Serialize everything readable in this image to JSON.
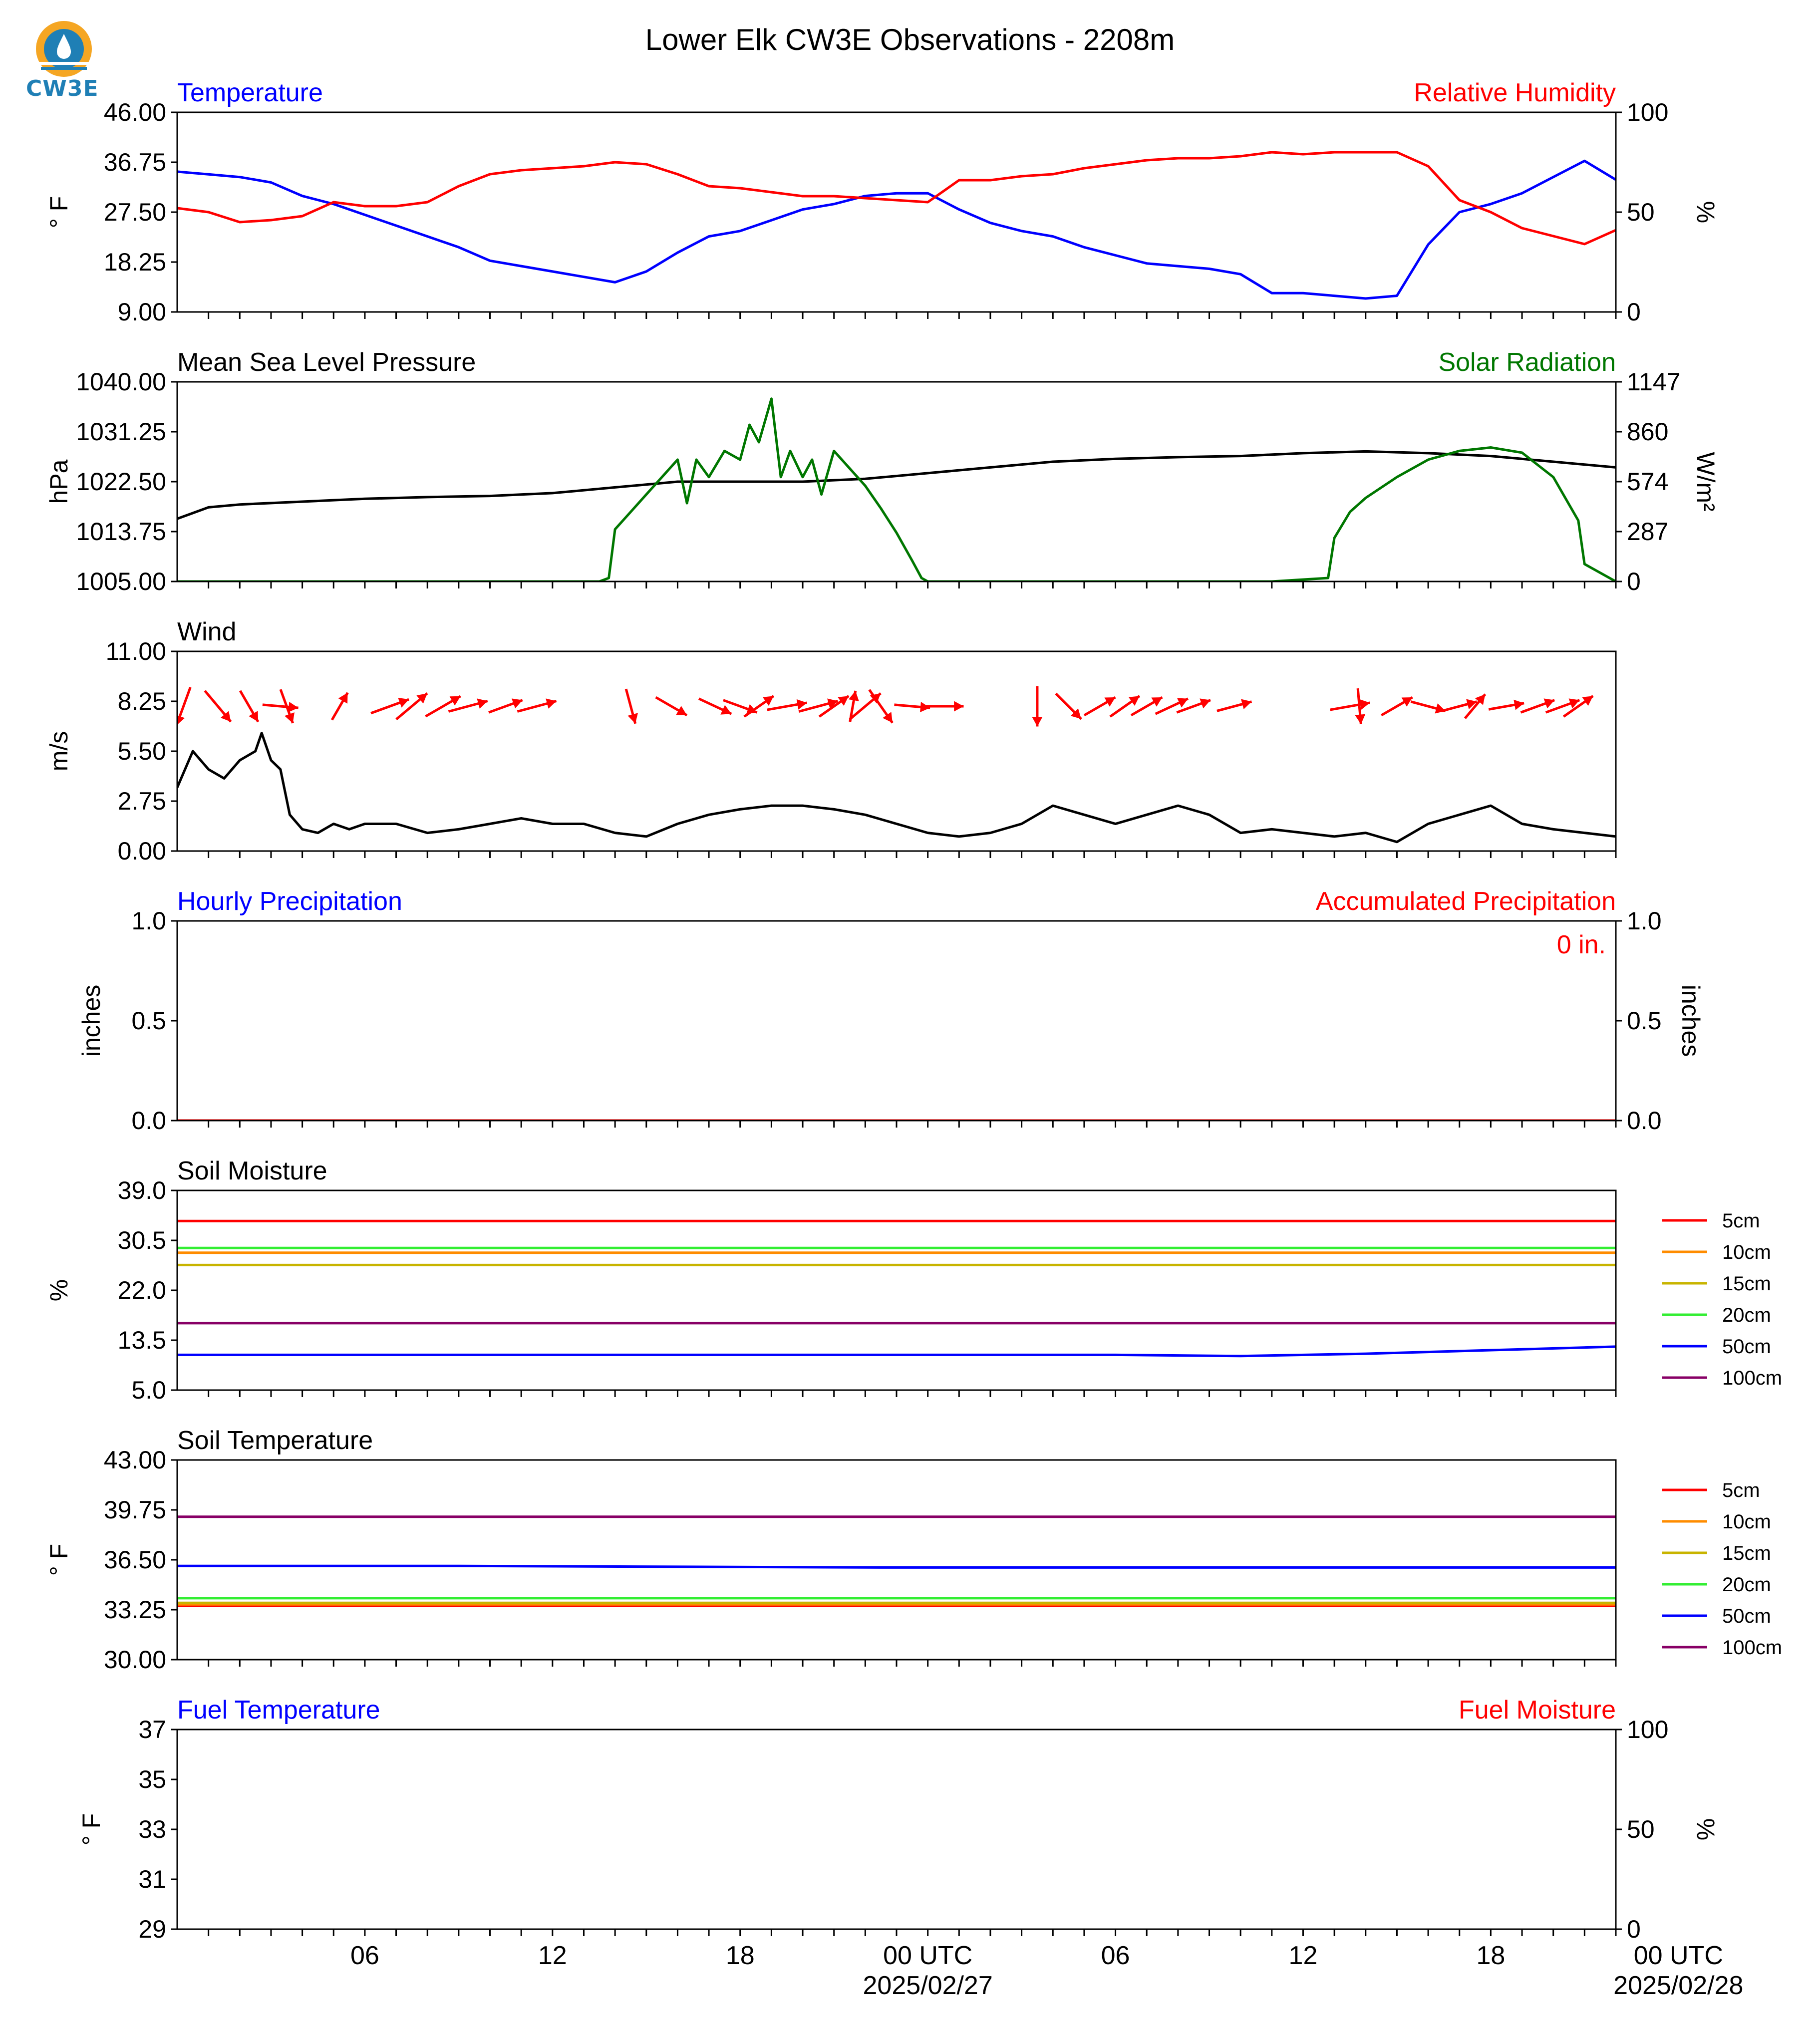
{
  "title": "Lower Elk CW3E Observations - 2208m",
  "logo": {
    "text": "CW3E",
    "icon": "cw3e-logo-icon",
    "colors": [
      "#f5a623",
      "#1f7fb5"
    ]
  },
  "time_axis": {
    "start_hour": 0,
    "end_hour": 46,
    "tick_hours": [
      6,
      12,
      18,
      24,
      30,
      36,
      42,
      48
    ],
    "tick_labels": [
      "06",
      "12",
      "18",
      "00 UTC",
      "06",
      "12",
      "18",
      "00 UTC"
    ],
    "date_labels": [
      {
        "hour": 24,
        "text": "2025/02/27"
      },
      {
        "hour": 48,
        "text": "2025/02/28"
      }
    ]
  },
  "legend_soil": [
    {
      "label": "5cm",
      "color": "#ff0000"
    },
    {
      "label": "10cm",
      "color": "#ff8c00"
    },
    {
      "label": "15cm",
      "color": "#c8b400"
    },
    {
      "label": "20cm",
      "color": "#33ee33"
    },
    {
      "label": "50cm",
      "color": "#0000ff"
    },
    {
      "label": "100cm",
      "color": "#880066"
    }
  ],
  "precip_total": "0 in.",
  "chart_data": [
    {
      "type": "line",
      "title_left": "Temperature",
      "title_left_color": "#0000ff",
      "title_right": "Relative Humidity",
      "title_right_color": "#ff0000",
      "ylabel": "° F",
      "ylabel_right": "%",
      "ylim": [
        9,
        46
      ],
      "yticks": [
        "9.00",
        "18.25",
        "27.50",
        "36.75",
        "46.00"
      ],
      "ylim_right": [
        0,
        100
      ],
      "yticks_right": [
        "0",
        "50",
        "100"
      ],
      "series": [
        {
          "name": "Temperature",
          "axis": "left",
          "color": "#0000ff",
          "x": [
            0,
            1,
            2,
            3,
            4,
            5,
            6,
            7,
            8,
            9,
            10,
            11,
            12,
            13,
            14,
            15,
            16,
            17,
            18,
            19,
            20,
            21,
            22,
            23,
            24,
            25,
            26,
            27,
            28,
            29,
            30,
            31,
            32,
            33,
            34,
            35,
            36,
            37,
            38,
            39,
            40,
            41,
            42,
            43,
            44,
            45,
            46
          ],
          "y": [
            35,
            34.5,
            34,
            33,
            30.5,
            29,
            27,
            25,
            23,
            21,
            18.5,
            17.5,
            16.5,
            15.5,
            14.5,
            16.5,
            20,
            23,
            24,
            26,
            28,
            29,
            30.5,
            31,
            31,
            28,
            25.5,
            24,
            23,
            21,
            19.5,
            18,
            17.5,
            17,
            16,
            12.5,
            12.5,
            12,
            11.5,
            12,
            21.5,
            27.5,
            29,
            31,
            34,
            37,
            33.5
          ]
        },
        {
          "name": "Relative Humidity",
          "axis": "right",
          "color": "#ff0000",
          "x": [
            0,
            1,
            2,
            3,
            4,
            5,
            6,
            7,
            8,
            9,
            10,
            11,
            12,
            13,
            14,
            15,
            16,
            17,
            18,
            19,
            20,
            21,
            22,
            23,
            24,
            25,
            26,
            27,
            28,
            29,
            30,
            31,
            32,
            33,
            34,
            35,
            36,
            37,
            38,
            39,
            40,
            41,
            42,
            43,
            44,
            45,
            46
          ],
          "y": [
            52,
            50,
            45,
            46,
            48,
            55,
            53,
            53,
            55,
            63,
            69,
            71,
            72,
            73,
            75,
            74,
            69,
            63,
            62,
            60,
            58,
            58,
            57,
            56,
            55,
            66,
            66,
            68,
            69,
            72,
            74,
            76,
            77,
            77,
            78,
            80,
            79,
            80,
            80,
            80,
            73,
            56,
            50,
            42,
            38,
            34,
            41
          ]
        }
      ]
    },
    {
      "type": "line",
      "title_left": "Mean Sea Level Pressure",
      "title_left_color": "#000000",
      "title_right": "Solar Radiation",
      "title_right_color": "#007700",
      "ylabel": "hPa",
      "ylabel_right": "W/m²",
      "ylim": [
        1005,
        1040
      ],
      "yticks": [
        "1005.00",
        "1013.75",
        "1022.50",
        "1031.25",
        "1040.00"
      ],
      "ylim_right": [
        0,
        1147
      ],
      "yticks_right": [
        "0",
        "287",
        "574",
        "860",
        "1147"
      ],
      "series": [
        {
          "name": "Mean Sea Level Pressure",
          "axis": "left",
          "color": "#000000",
          "x": [
            0,
            1,
            2,
            4,
            6,
            8,
            10,
            12,
            14,
            16,
            18,
            20,
            22,
            24,
            26,
            28,
            30,
            32,
            34,
            36,
            38,
            40,
            42,
            44,
            46
          ],
          "y": [
            1016,
            1018,
            1018.5,
            1019,
            1019.5,
            1019.8,
            1020,
            1020.5,
            1021.5,
            1022.5,
            1022.5,
            1022.5,
            1023,
            1024,
            1025,
            1026,
            1026.5,
            1026.8,
            1027,
            1027.5,
            1027.8,
            1027.5,
            1027,
            1026,
            1025
          ]
        },
        {
          "name": "Solar Radiation",
          "axis": "right",
          "color": "#007700",
          "x": [
            0,
            13.5,
            13.8,
            14,
            14.5,
            15,
            15.5,
            16,
            16.3,
            16.6,
            17,
            17.5,
            18,
            18.3,
            18.6,
            19,
            19.3,
            19.6,
            20,
            20.3,
            20.6,
            21,
            21.5,
            22,
            22.5,
            23,
            23.5,
            23.8,
            24,
            24.5,
            35,
            36.8,
            37,
            37.5,
            38,
            39,
            40,
            41,
            42,
            43,
            44,
            44.8,
            45,
            46
          ],
          "y": [
            0,
            0,
            20,
            300,
            400,
            500,
            600,
            700,
            450,
            700,
            600,
            750,
            700,
            900,
            800,
            1050,
            600,
            750,
            600,
            700,
            500,
            750,
            650,
            550,
            420,
            280,
            120,
            20,
            0,
            0,
            0,
            20,
            250,
            400,
            480,
            600,
            700,
            750,
            770,
            740,
            600,
            350,
            100,
            0
          ]
        }
      ]
    },
    {
      "type": "line",
      "title_left": "Wind",
      "title_left_color": "#000000",
      "ylabel": "m/s",
      "ylim": [
        0,
        11
      ],
      "yticks": [
        "0.00",
        "2.75",
        "5.50",
        "8.25",
        "11.00"
      ],
      "series": [
        {
          "name": "Wind",
          "axis": "left",
          "color": "#000000",
          "x": [
            0,
            0.5,
            1,
            1.5,
            2,
            2.5,
            2.7,
            3,
            3.3,
            3.6,
            4,
            4.5,
            5,
            5.5,
            6,
            7,
            8,
            9,
            10,
            11,
            12,
            13,
            14,
            15,
            16,
            17,
            18,
            19,
            20,
            21,
            22,
            23,
            24,
            25,
            26,
            27,
            28,
            29,
            30,
            31,
            32,
            33,
            34,
            35,
            36,
            37,
            38,
            39,
            40,
            41,
            42,
            43,
            44,
            45,
            46
          ],
          "y": [
            3.5,
            5.5,
            4.5,
            4,
            5,
            5.5,
            6.5,
            5,
            4.5,
            2,
            1.2,
            1,
            1.5,
            1.2,
            1.5,
            1.5,
            1,
            1.2,
            1.5,
            1.8,
            1.5,
            1.5,
            1,
            0.8,
            1.5,
            2,
            2.3,
            2.5,
            2.5,
            2.3,
            2,
            1.5,
            1,
            0.8,
            1,
            1.5,
            2.5,
            2,
            1.5,
            2,
            2.5,
            2,
            1,
            1.2,
            1,
            0.8,
            1,
            0.5,
            1.5,
            2,
            2.5,
            1.5,
            1.2,
            1,
            0.8
          ]
        }
      ],
      "arrows": [
        {
          "x": 0.2,
          "dir_deg": 200,
          "len": 0.9
        },
        {
          "x": 1.3,
          "dir_deg": 140,
          "len": 0.9
        },
        {
          "x": 2.3,
          "dir_deg": 150,
          "len": 0.8
        },
        {
          "x": 3.3,
          "dir_deg": 95,
          "len": 0.8
        },
        {
          "x": 3.5,
          "dir_deg": 160,
          "len": 0.8
        },
        {
          "x": 5.2,
          "dir_deg": 30,
          "len": 0.7
        },
        {
          "x": 6.8,
          "dir_deg": 70,
          "len": 0.9
        },
        {
          "x": 7.5,
          "dir_deg": 50,
          "len": 0.9
        },
        {
          "x": 8.5,
          "dir_deg": 60,
          "len": 0.9
        },
        {
          "x": 9.3,
          "dir_deg": 75,
          "len": 0.9
        },
        {
          "x": 10.5,
          "dir_deg": 70,
          "len": 0.8
        },
        {
          "x": 11.5,
          "dir_deg": 75,
          "len": 0.9
        },
        {
          "x": 14.5,
          "dir_deg": 165,
          "len": 0.8
        },
        {
          "x": 15.8,
          "dir_deg": 120,
          "len": 0.8
        },
        {
          "x": 17.2,
          "dir_deg": 115,
          "len": 0.8
        },
        {
          "x": 18.0,
          "dir_deg": 110,
          "len": 0.8
        },
        {
          "x": 18.6,
          "dir_deg": 55,
          "len": 0.8
        },
        {
          "x": 19.5,
          "dir_deg": 80,
          "len": 0.9
        },
        {
          "x": 20.5,
          "dir_deg": 75,
          "len": 0.9
        },
        {
          "x": 21.0,
          "dir_deg": 55,
          "len": 0.8
        },
        {
          "x": 21.6,
          "dir_deg": 10,
          "len": 0.7
        },
        {
          "x": 22.0,
          "dir_deg": 50,
          "len": 0.9
        },
        {
          "x": 22.5,
          "dir_deg": 145,
          "len": 0.9
        },
        {
          "x": 23.5,
          "dir_deg": 95,
          "len": 0.8
        },
        {
          "x": 24.5,
          "dir_deg": 90,
          "len": 0.9
        },
        {
          "x": 27.5,
          "dir_deg": 180,
          "len": 0.9
        },
        {
          "x": 28.5,
          "dir_deg": 135,
          "len": 0.8
        },
        {
          "x": 29.5,
          "dir_deg": 60,
          "len": 0.8
        },
        {
          "x": 30.3,
          "dir_deg": 55,
          "len": 0.8
        },
        {
          "x": 31.0,
          "dir_deg": 60,
          "len": 0.8
        },
        {
          "x": 31.8,
          "dir_deg": 65,
          "len": 0.8
        },
        {
          "x": 32.5,
          "dir_deg": 70,
          "len": 0.8
        },
        {
          "x": 33.8,
          "dir_deg": 75,
          "len": 0.8
        },
        {
          "x": 37.5,
          "dir_deg": 80,
          "len": 0.9
        },
        {
          "x": 37.8,
          "dir_deg": 175,
          "len": 0.8
        },
        {
          "x": 39.0,
          "dir_deg": 60,
          "len": 0.8
        },
        {
          "x": 40.0,
          "dir_deg": 105,
          "len": 0.8
        },
        {
          "x": 41.0,
          "dir_deg": 75,
          "len": 0.8
        },
        {
          "x": 41.5,
          "dir_deg": 40,
          "len": 0.7
        },
        {
          "x": 42.5,
          "dir_deg": 80,
          "len": 0.8
        },
        {
          "x": 43.5,
          "dir_deg": 70,
          "len": 0.8
        },
        {
          "x": 44.3,
          "dir_deg": 70,
          "len": 0.8
        },
        {
          "x": 44.8,
          "dir_deg": 55,
          "len": 0.8
        }
      ]
    },
    {
      "type": "line",
      "title_left": "Hourly Precipitation",
      "title_left_color": "#0000ff",
      "title_right": "Accumulated Precipitation",
      "title_right_color": "#ff0000",
      "ylabel": "inches",
      "ylabel_right": "inches",
      "ylim": [
        0,
        1
      ],
      "yticks": [
        "0.0",
        "0.5",
        "1.0"
      ],
      "ylim_right": [
        0,
        1
      ],
      "yticks_right": [
        "0.0",
        "0.5",
        "1.0"
      ],
      "series": [
        {
          "name": "Accumulated Precipitation",
          "axis": "right",
          "color": "#ff0000",
          "x": [
            0,
            46
          ],
          "y": [
            0,
            0
          ]
        }
      ]
    },
    {
      "type": "line",
      "title_left": "Soil Moisture",
      "title_left_color": "#000000",
      "ylabel": "%",
      "ylim": [
        5,
        39
      ],
      "yticks": [
        "5.0",
        "13.5",
        "22.0",
        "30.5",
        "39.0"
      ],
      "series": [
        {
          "name": "5cm",
          "axis": "left",
          "color": "#ff0000",
          "x": [
            0,
            46
          ],
          "y": [
            33.8,
            33.8
          ]
        },
        {
          "name": "10cm",
          "axis": "left",
          "color": "#ff8c00",
          "x": [
            0,
            46
          ],
          "y": [
            28.4,
            28.4
          ]
        },
        {
          "name": "15cm",
          "axis": "left",
          "color": "#c8b400",
          "x": [
            0,
            46
          ],
          "y": [
            26.3,
            26.3
          ]
        },
        {
          "name": "20cm",
          "axis": "left",
          "color": "#33ee33",
          "x": [
            0,
            46
          ],
          "y": [
            29.2,
            29.2
          ]
        },
        {
          "name": "50cm",
          "axis": "left",
          "color": "#0000ff",
          "x": [
            0,
            15,
            30,
            34,
            38,
            42,
            46
          ],
          "y": [
            11.0,
            11.0,
            11.0,
            10.8,
            11.2,
            11.8,
            12.4
          ]
        },
        {
          "name": "100cm",
          "axis": "left",
          "color": "#880066",
          "x": [
            0,
            46
          ],
          "y": [
            16.4,
            16.4
          ]
        }
      ]
    },
    {
      "type": "line",
      "title_left": "Soil Temperature",
      "title_left_color": "#000000",
      "ylabel": "° F",
      "ylim": [
        30,
        43
      ],
      "yticks": [
        "30.00",
        "33.25",
        "36.50",
        "39.75",
        "43.00"
      ],
      "series": [
        {
          "name": "5cm",
          "axis": "left",
          "color": "#ff0000",
          "x": [
            0,
            46
          ],
          "y": [
            33.5,
            33.5
          ]
        },
        {
          "name": "10cm",
          "axis": "left",
          "color": "#ff8c00",
          "x": [
            0,
            46
          ],
          "y": [
            33.6,
            33.6
          ]
        },
        {
          "name": "15cm",
          "axis": "left",
          "color": "#c8b400",
          "x": [
            0,
            46
          ],
          "y": [
            33.7,
            33.7
          ]
        },
        {
          "name": "20cm",
          "axis": "left",
          "color": "#33ee33",
          "x": [
            0,
            46
          ],
          "y": [
            34.0,
            34.0
          ]
        },
        {
          "name": "50cm",
          "axis": "left",
          "color": "#0000ff",
          "x": [
            0,
            9,
            22.5,
            46
          ],
          "y": [
            36.1,
            36.1,
            36.0,
            36.0
          ]
        },
        {
          "name": "100cm",
          "axis": "left",
          "color": "#880066",
          "x": [
            0,
            46
          ],
          "y": [
            39.3,
            39.3
          ]
        }
      ]
    },
    {
      "type": "line",
      "title_left": "Fuel Temperature",
      "title_left_color": "#0000ff",
      "title_right": "Fuel Moisture",
      "title_right_color": "#ff0000",
      "ylabel": "° F",
      "ylabel_right": "%",
      "ylim": [
        29,
        37
      ],
      "yticks": [
        "29",
        "31",
        "33",
        "35",
        "37"
      ],
      "ylim_right": [
        0,
        100
      ],
      "yticks_right": [
        "0",
        "50",
        "100"
      ],
      "series": []
    }
  ]
}
